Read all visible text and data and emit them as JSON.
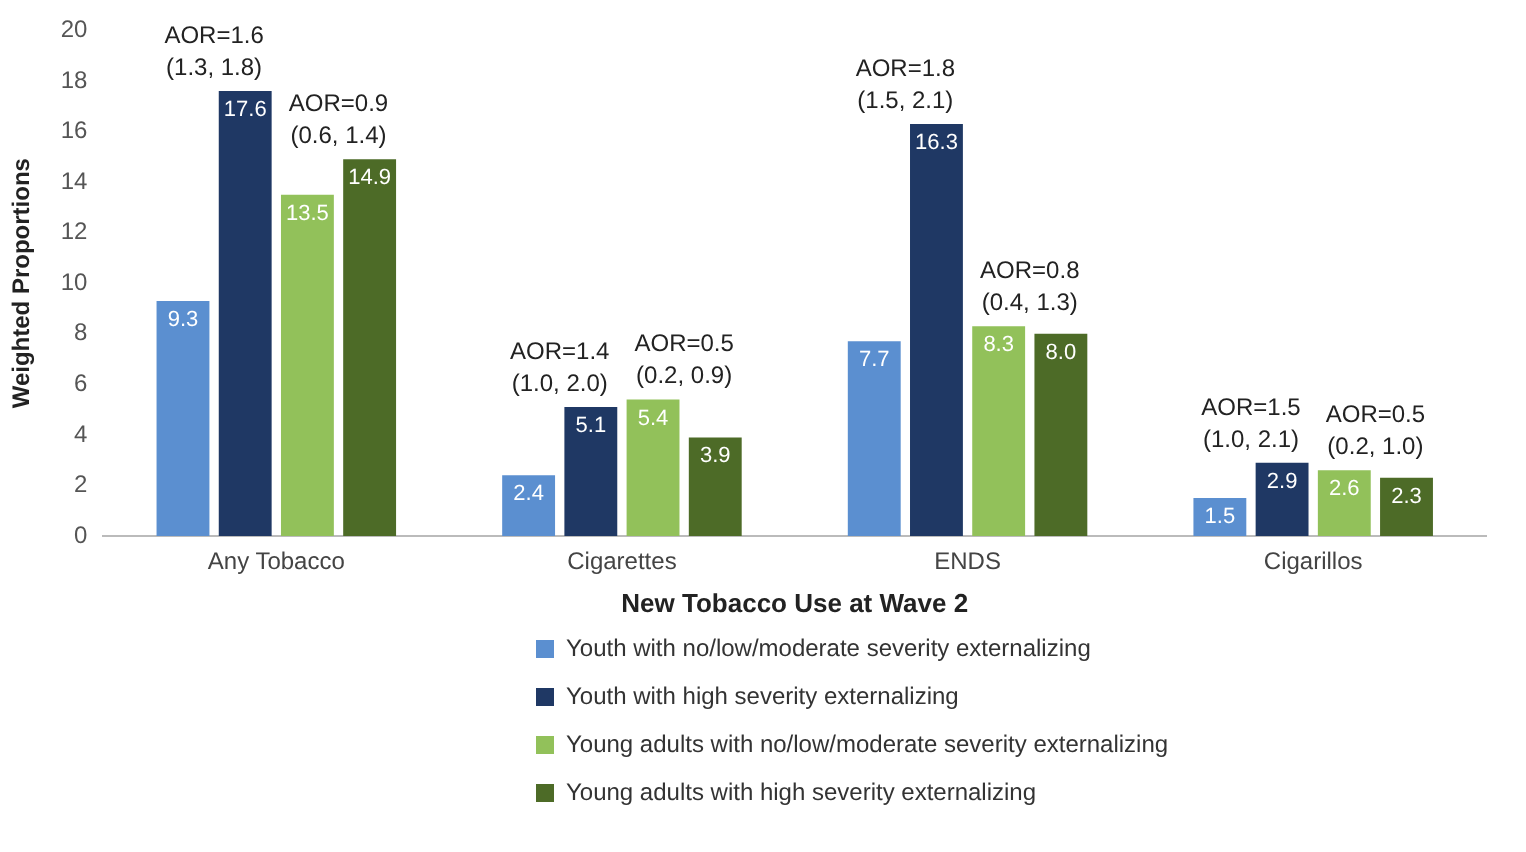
{
  "chart_data": {
    "type": "bar",
    "xlabel": "New Tobacco Use at Wave 2",
    "ylabel": "Weighted Proportions",
    "categories": [
      "Any Tobacco",
      "Cigarettes",
      "ENDS",
      "Cigarillos"
    ],
    "series": [
      {
        "name": "Youth with no/low/moderate severity externalizing",
        "color": "#5b8fd0",
        "values": [
          9.3,
          2.4,
          7.7,
          1.5
        ]
      },
      {
        "name": "Youth with high severity externalizing",
        "color": "#1f3864",
        "values": [
          17.6,
          5.1,
          16.3,
          2.9
        ]
      },
      {
        "name": "Young adults with no/low/moderate severity externalizing",
        "color": "#92c15a",
        "values": [
          13.5,
          5.4,
          8.3,
          2.6
        ]
      },
      {
        "name": "Young adults with high severity externalizing",
        "color": "#4d6b27",
        "values": [
          14.9,
          3.9,
          8.0,
          2.3
        ],
        "value_labels": [
          "14.9",
          "3.9",
          "8.0",
          "2.3"
        ]
      }
    ],
    "ylim": [
      0,
      20
    ],
    "yticks": [
      0,
      2,
      4,
      6,
      8,
      10,
      12,
      14,
      16,
      18,
      20
    ],
    "grid": false,
    "legend": "bottom",
    "data_labels": true,
    "annotations": [
      "AOR=1.6\n(1.3, 1.8)",
      "AOR=0.9\n(0.6, 1.4)",
      "AOR=1.4\n(1.0, 2.0)",
      "AOR=0.5\n(0.2, 0.9)",
      "AOR=1.8\n(1.5, 2.1)",
      "AOR=0.8\n(0.4, 1.3)",
      "AOR=1.5\n(1.0, 2.1)",
      "AOR=0.5\n(0.2, 1.0)"
    ]
  }
}
